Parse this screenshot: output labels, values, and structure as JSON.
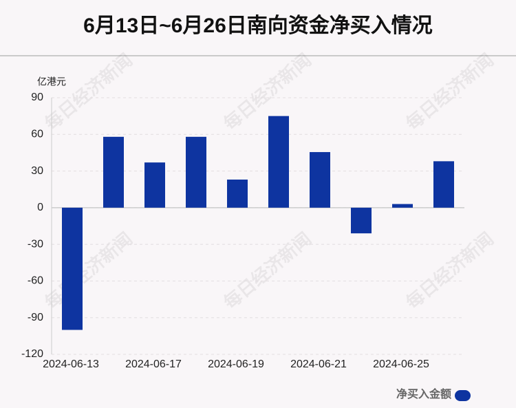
{
  "chart_data": {
    "type": "bar",
    "title": "6月13日~6月26日南向资金净买入情况",
    "y_label": "亿港元",
    "watermark": "每日经济新闻",
    "categories": [
      "2024-06-13",
      null,
      "2024-06-17",
      null,
      "2024-06-19",
      null,
      "2024-06-21",
      null,
      "2024-06-25",
      null
    ],
    "series": [
      {
        "name": "净买入金额",
        "color": "#0e34a0",
        "values": [
          -100,
          58,
          37,
          58,
          23,
          75,
          45.5,
          -21,
          3,
          38
        ]
      }
    ],
    "ylim": [
      -120,
      90
    ],
    "yticks": [
      -120,
      -90,
      -60,
      -30,
      0,
      30,
      60,
      90
    ],
    "grid": true,
    "legend": "bottom-right"
  }
}
